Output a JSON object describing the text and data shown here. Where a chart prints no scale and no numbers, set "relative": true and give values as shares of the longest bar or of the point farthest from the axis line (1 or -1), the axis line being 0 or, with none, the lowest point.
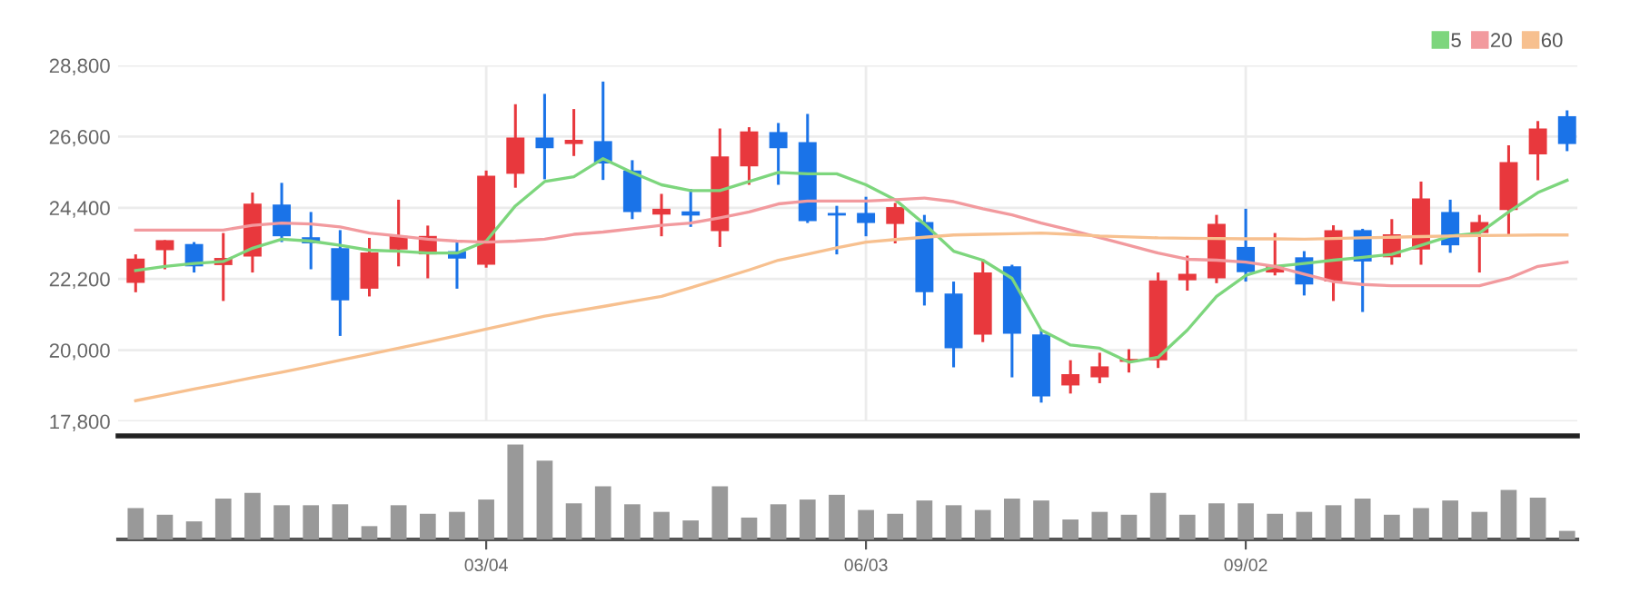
{
  "chart_data": [
    {
      "type": "candlestick",
      "categories": [
        null,
        null,
        null,
        null,
        null,
        null,
        null,
        null,
        null,
        null,
        null,
        null,
        null,
        null,
        null,
        null,
        null,
        null,
        null,
        null,
        null,
        null,
        null,
        null,
        null,
        null,
        null,
        null,
        null,
        null,
        null,
        null,
        null,
        null,
        null,
        null,
        null,
        null,
        null,
        null,
        null,
        null,
        null,
        null,
        null,
        null,
        null,
        null,
        null,
        null
      ],
      "ohlc": [
        [
          22080,
          22960,
          21790,
          22830
        ],
        [
          23090,
          23400,
          22500,
          23400
        ],
        [
          23280,
          23340,
          22400,
          22590
        ],
        [
          22630,
          23620,
          21520,
          22850
        ],
        [
          22890,
          24870,
          22400,
          24530
        ],
        [
          24500,
          25170,
          23340,
          23520
        ],
        [
          23490,
          24270,
          22500,
          23300
        ],
        [
          23150,
          23710,
          20440,
          21540
        ],
        [
          21900,
          23470,
          21660,
          23020
        ],
        [
          23110,
          24650,
          22590,
          23530
        ],
        [
          22960,
          23850,
          22220,
          23530
        ],
        [
          23060,
          23400,
          21900,
          22830
        ],
        [
          22640,
          25550,
          22550,
          25390
        ],
        [
          25450,
          27600,
          25020,
          26570
        ],
        [
          26570,
          27920,
          25280,
          26240
        ],
        [
          26370,
          27450,
          26000,
          26500
        ],
        [
          26460,
          28300,
          25260,
          25770
        ],
        [
          25550,
          25870,
          24050,
          24270
        ],
        [
          24190,
          24830,
          23520,
          24370
        ],
        [
          24290,
          24980,
          23810,
          24160
        ],
        [
          23680,
          26850,
          23190,
          25990
        ],
        [
          25680,
          26890,
          25110,
          26760
        ],
        [
          26740,
          27020,
          25110,
          26240
        ],
        [
          26430,
          27300,
          23930,
          23990
        ],
        [
          24240,
          24460,
          22960,
          24160
        ],
        [
          24240,
          24740,
          23520,
          23930
        ],
        [
          23900,
          24550,
          23300,
          24420
        ],
        [
          23960,
          24180,
          21380,
          21790
        ],
        [
          21750,
          22120,
          19470,
          20060
        ],
        [
          20480,
          22810,
          20250,
          22400
        ],
        [
          22590,
          22640,
          19160,
          20510
        ],
        [
          20490,
          20620,
          18380,
          18570
        ],
        [
          18910,
          19690,
          18660,
          19260
        ],
        [
          19160,
          19920,
          18980,
          19500
        ],
        [
          19640,
          20030,
          19310,
          19730
        ],
        [
          19690,
          22400,
          19450,
          22160
        ],
        [
          22160,
          22920,
          21840,
          22360
        ],
        [
          22220,
          24180,
          22070,
          23900
        ],
        [
          23190,
          24370,
          22120,
          22410
        ],
        [
          22400,
          23620,
          22310,
          22630
        ],
        [
          22870,
          23060,
          21690,
          22030
        ],
        [
          22120,
          23860,
          21520,
          23710
        ],
        [
          23710,
          23750,
          21180,
          22740
        ],
        [
          22870,
          24050,
          22640,
          23580
        ],
        [
          23110,
          25210,
          22640,
          24690
        ],
        [
          24270,
          24650,
          23010,
          23240
        ],
        [
          23620,
          24180,
          22400,
          23960
        ],
        [
          24330,
          26330,
          23530,
          25810
        ],
        [
          26050,
          27080,
          25250,
          26850
        ],
        [
          27230,
          27410,
          26150,
          26370
        ]
      ],
      "colors": [
        "#e8383d",
        "#e8383d",
        "#1a73e8",
        "#e8383d",
        "#e8383d",
        "#1a73e8",
        "#1a73e8",
        "#1a73e8",
        "#e8383d",
        "#e8383d",
        "#e8383d",
        "#1a73e8",
        "#e8383d",
        "#e8383d",
        "#1a73e8",
        "#e8383d",
        "#1a73e8",
        "#1a73e8",
        "#e8383d",
        "#1a73e8",
        "#e8383d",
        "#e8383d",
        "#1a73e8",
        "#1a73e8",
        "#1a73e8",
        "#1a73e8",
        "#e8383d",
        "#1a73e8",
        "#1a73e8",
        "#e8383d",
        "#1a73e8",
        "#1a73e8",
        "#e8383d",
        "#e8383d",
        "#e8383d",
        "#e8383d",
        "#e8383d",
        "#e8383d",
        "#1a73e8",
        "#e8383d",
        "#1a73e8",
        "#e8383d",
        "#1a73e8",
        "#e8383d",
        "#e8383d",
        "#1a73e8",
        "#e8383d",
        "#e8383d",
        "#e8383d",
        "#1a73e8"
      ],
      "series": [
        {
          "type": "line",
          "name": "5",
          "color": "#7dd67d",
          "values": [
            22460,
            22590,
            22680,
            22740,
            23150,
            23430,
            23370,
            23240,
            23090,
            23060,
            23000,
            23000,
            23370,
            24460,
            25210,
            25360,
            25920,
            25490,
            25110,
            24930,
            24930,
            25210,
            25490,
            25450,
            25450,
            25110,
            24650,
            23900,
            23060,
            22780,
            22220,
            20620,
            20160,
            20060,
            19630,
            19780,
            20620,
            21660,
            22310,
            22590,
            22680,
            22780,
            22870,
            22960,
            23240,
            23530,
            23620,
            24270,
            24870,
            25250
          ]
        },
        {
          "type": "line",
          "name": "20",
          "color": "#f29a9e",
          "values": [
            23710,
            23710,
            23710,
            23710,
            23860,
            23930,
            23900,
            23810,
            23620,
            23530,
            23430,
            23370,
            23340,
            23370,
            23430,
            23580,
            23650,
            23750,
            23860,
            23930,
            24090,
            24270,
            24520,
            24610,
            24610,
            24610,
            24650,
            24700,
            24590,
            24370,
            24180,
            23930,
            23710,
            23480,
            23240,
            23000,
            22810,
            22780,
            22720,
            22590,
            22350,
            22120,
            22030,
            21990,
            21990,
            21990,
            21990,
            22220,
            22590,
            22720
          ]
        },
        {
          "type": "line",
          "name": "60",
          "color": "#f7c08f",
          "values": [
            18440,
            18620,
            18800,
            18970,
            19150,
            19320,
            19500,
            19690,
            19870,
            20060,
            20250,
            20450,
            20650,
            20850,
            21050,
            21200,
            21350,
            21510,
            21660,
            21930,
            22200,
            22480,
            22780,
            22970,
            23160,
            23340,
            23420,
            23490,
            23560,
            23580,
            23600,
            23620,
            23580,
            23530,
            23500,
            23470,
            23460,
            23450,
            23440,
            23440,
            23430,
            23450,
            23470,
            23490,
            23510,
            23530,
            23540,
            23550,
            23560,
            23560
          ]
        }
      ],
      "ylim": [
        17800,
        28800
      ],
      "yticks": [
        {
          "value": 17800,
          "label": "17,800"
        },
        {
          "value": 20000,
          "label": "20,000"
        },
        {
          "value": 22200,
          "label": "22,200"
        },
        {
          "value": 24400,
          "label": "24,400"
        },
        {
          "value": 26600,
          "label": "26,600"
        },
        {
          "value": 28800,
          "label": "28,800"
        }
      ],
      "grid": true,
      "legend": "top right",
      "tick_labels": "y",
      "marker": "none"
    },
    {
      "type": "bar",
      "categories": [
        null,
        null,
        null,
        null,
        null,
        null,
        null,
        null,
        null,
        null,
        null,
        null,
        "03/04",
        null,
        null,
        null,
        null,
        null,
        null,
        null,
        null,
        null,
        null,
        null,
        null,
        "06/03",
        null,
        null,
        null,
        null,
        null,
        null,
        null,
        null,
        null,
        null,
        null,
        null,
        "09/02",
        null,
        null,
        null,
        null,
        null,
        null,
        null,
        null,
        null,
        null,
        null
      ],
      "values": [
        0.33,
        0.26,
        0.19,
        0.43,
        0.49,
        0.36,
        0.36,
        0.37,
        0.14,
        0.36,
        0.27,
        0.29,
        0.42,
        1,
        0.83,
        0.38,
        0.56,
        0.37,
        0.29,
        0.2,
        0.56,
        0.23,
        0.37,
        0.42,
        0.47,
        0.31,
        0.27,
        0.41,
        0.36,
        0.31,
        0.43,
        0.41,
        0.21,
        0.29,
        0.26,
        0.49,
        0.26,
        0.38,
        0.38,
        0.27,
        0.29,
        0.36,
        0.43,
        0.26,
        0.33,
        0.41,
        0.29,
        0.52,
        0.44,
        0.09
      ],
      "color": "#999999",
      "relative": true,
      "tick_labels": "x"
    }
  ]
}
